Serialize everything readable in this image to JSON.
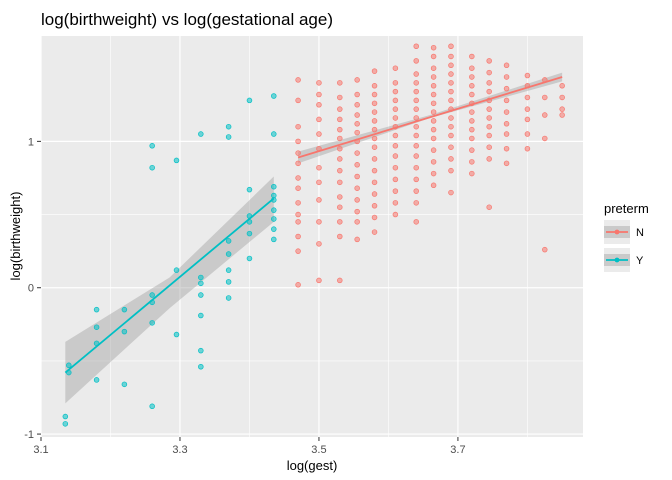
{
  "chart_data": {
    "type": "scatter",
    "title": "log(birthweight) vs log(gestational age)",
    "xlabel": "log(gest)",
    "ylabel": "log(birthweight)",
    "xlim": [
      3.1,
      3.88
    ],
    "ylim": [
      -1.02,
      1.72
    ],
    "x_ticks": [
      3.1,
      3.3,
      3.5,
      3.7
    ],
    "x_tick_labels": [
      "3.1",
      "3.3",
      "3.5",
      "3.7"
    ],
    "y_ticks": [
      -1,
      0,
      1
    ],
    "y_tick_labels": [
      "-1",
      "0",
      "1"
    ],
    "grid": true,
    "legend": {
      "title": "preterm",
      "position": "right"
    },
    "colors": {
      "N": "#f8766d",
      "Y": "#00bfc4",
      "ribbon": "#999999",
      "panel": "#ebebeb"
    },
    "series": [
      {
        "name": "Y",
        "points": [
          [
            3.135,
            -0.93
          ],
          [
            3.135,
            -0.88
          ],
          [
            3.14,
            -0.58
          ],
          [
            3.14,
            -0.53
          ],
          [
            3.18,
            -0.63
          ],
          [
            3.18,
            -0.38
          ],
          [
            3.18,
            -0.27
          ],
          [
            3.18,
            -0.15
          ],
          [
            3.22,
            -0.66
          ],
          [
            3.22,
            -0.3
          ],
          [
            3.22,
            -0.15
          ],
          [
            3.26,
            -0.81
          ],
          [
            3.26,
            -0.24
          ],
          [
            3.26,
            -0.1
          ],
          [
            3.26,
            -0.05
          ],
          [
            3.26,
            0.82
          ],
          [
            3.26,
            0.97
          ],
          [
            3.295,
            -0.32
          ],
          [
            3.295,
            0.12
          ],
          [
            3.295,
            0.87
          ],
          [
            3.33,
            -0.54
          ],
          [
            3.33,
            -0.43
          ],
          [
            3.33,
            -0.19
          ],
          [
            3.33,
            -0.05
          ],
          [
            3.33,
            0.03
          ],
          [
            3.33,
            0.07
          ],
          [
            3.33,
            1.05
          ],
          [
            3.37,
            -0.07
          ],
          [
            3.37,
            0.04
          ],
          [
            3.37,
            0.12
          ],
          [
            3.37,
            0.23
          ],
          [
            3.37,
            0.32
          ],
          [
            3.37,
            1.03
          ],
          [
            3.37,
            1.1
          ],
          [
            3.4,
            0.2
          ],
          [
            3.4,
            0.37
          ],
          [
            3.4,
            0.45
          ],
          [
            3.4,
            0.49
          ],
          [
            3.4,
            0.67
          ],
          [
            3.4,
            1.28
          ],
          [
            3.435,
            0.33
          ],
          [
            3.435,
            0.4
          ],
          [
            3.435,
            0.47
          ],
          [
            3.435,
            0.53
          ],
          [
            3.435,
            0.6
          ],
          [
            3.435,
            0.63
          ],
          [
            3.435,
            0.69
          ],
          [
            3.435,
            1.05
          ],
          [
            3.435,
            1.31
          ]
        ],
        "fit": {
          "x": [
            3.135,
            3.435
          ],
          "y": [
            -0.58,
            0.61
          ]
        },
        "band": {
          "x": [
            3.135,
            3.285,
            3.435
          ],
          "lower": [
            -0.79,
            -0.14,
            0.45
          ],
          "upper": [
            -0.37,
            0.07,
            0.76
          ]
        }
      },
      {
        "name": "N",
        "points_by_x": [
          {
            "x": 3.47,
            "y": [
              0.02,
              0.25,
              0.35,
              0.45,
              0.5,
              0.58,
              0.68,
              0.75,
              0.85,
              0.92,
              1.0,
              1.1,
              1.28,
              1.42
            ]
          },
          {
            "x": 3.5,
            "y": [
              0.05,
              0.3,
              0.45,
              0.6,
              0.72,
              0.82,
              0.95,
              1.05,
              1.15,
              1.25,
              1.32,
              1.4
            ]
          },
          {
            "x": 3.53,
            "y": [
              0.05,
              0.35,
              0.45,
              0.55,
              0.62,
              0.72,
              0.8,
              0.88,
              0.95,
              1.02,
              1.08,
              1.15,
              1.22,
              1.3,
              1.4
            ]
          },
          {
            "x": 3.555,
            "y": [
              0.33,
              0.45,
              0.52,
              0.6,
              0.68,
              0.76,
              0.84,
              0.92,
              1.0,
              1.06,
              1.12,
              1.18,
              1.25,
              1.32,
              1.42
            ]
          },
          {
            "x": 3.58,
            "y": [
              0.38,
              0.48,
              0.56,
              0.64,
              0.72,
              0.8,
              0.88,
              0.96,
              1.02,
              1.08,
              1.14,
              1.2,
              1.26,
              1.32,
              1.38,
              1.48
            ]
          },
          {
            "x": 3.61,
            "y": [
              0.5,
              0.58,
              0.66,
              0.74,
              0.82,
              0.9,
              0.97,
              1.04,
              1.1,
              1.16,
              1.22,
              1.28,
              1.34,
              1.4,
              1.5
            ]
          },
          {
            "x": 3.64,
            "y": [
              0.45,
              0.58,
              0.66,
              0.74,
              0.82,
              0.9,
              0.97,
              1.04,
              1.1,
              1.16,
              1.22,
              1.28,
              1.34,
              1.4,
              1.46,
              1.55,
              1.65
            ]
          },
          {
            "x": 3.665,
            "y": [
              0.7,
              0.78,
              0.86,
              0.94,
              1.02,
              1.08,
              1.14,
              1.2,
              1.26,
              1.32,
              1.38,
              1.44,
              1.5,
              1.58,
              1.64
            ]
          },
          {
            "x": 3.69,
            "y": [
              0.65,
              0.8,
              0.88,
              0.96,
              1.04,
              1.1,
              1.16,
              1.22,
              1.28,
              1.34,
              1.4,
              1.46,
              1.52,
              1.58,
              1.65
            ]
          },
          {
            "x": 3.72,
            "y": [
              0.78,
              0.86,
              0.94,
              1.02,
              1.08,
              1.14,
              1.2,
              1.26,
              1.32,
              1.38,
              1.44,
              1.5,
              1.58
            ]
          },
          {
            "x": 3.745,
            "y": [
              0.55,
              0.88,
              0.96,
              1.04,
              1.1,
              1.16,
              1.22,
              1.28,
              1.34,
              1.4,
              1.47,
              1.55
            ]
          },
          {
            "x": 3.77,
            "y": [
              0.85,
              0.95,
              1.05,
              1.12,
              1.2,
              1.28,
              1.36,
              1.44,
              1.52
            ]
          },
          {
            "x": 3.8,
            "y": [
              0.95,
              1.05,
              1.15,
              1.22,
              1.3,
              1.38,
              1.45
            ]
          },
          {
            "x": 3.825,
            "y": [
              0.26,
              1.02,
              1.18,
              1.3,
              1.42
            ]
          },
          {
            "x": 3.85,
            "y": [
              1.18,
              1.22,
              1.3,
              1.38
            ]
          }
        ],
        "fit": {
          "x": [
            3.47,
            3.85
          ],
          "y": [
            0.89,
            1.44
          ]
        },
        "band": {
          "x": [
            3.47,
            3.66,
            3.85
          ],
          "lower": [
            0.85,
            1.16,
            1.41
          ],
          "upper": [
            0.93,
            1.18,
            1.47
          ]
        }
      }
    ]
  }
}
